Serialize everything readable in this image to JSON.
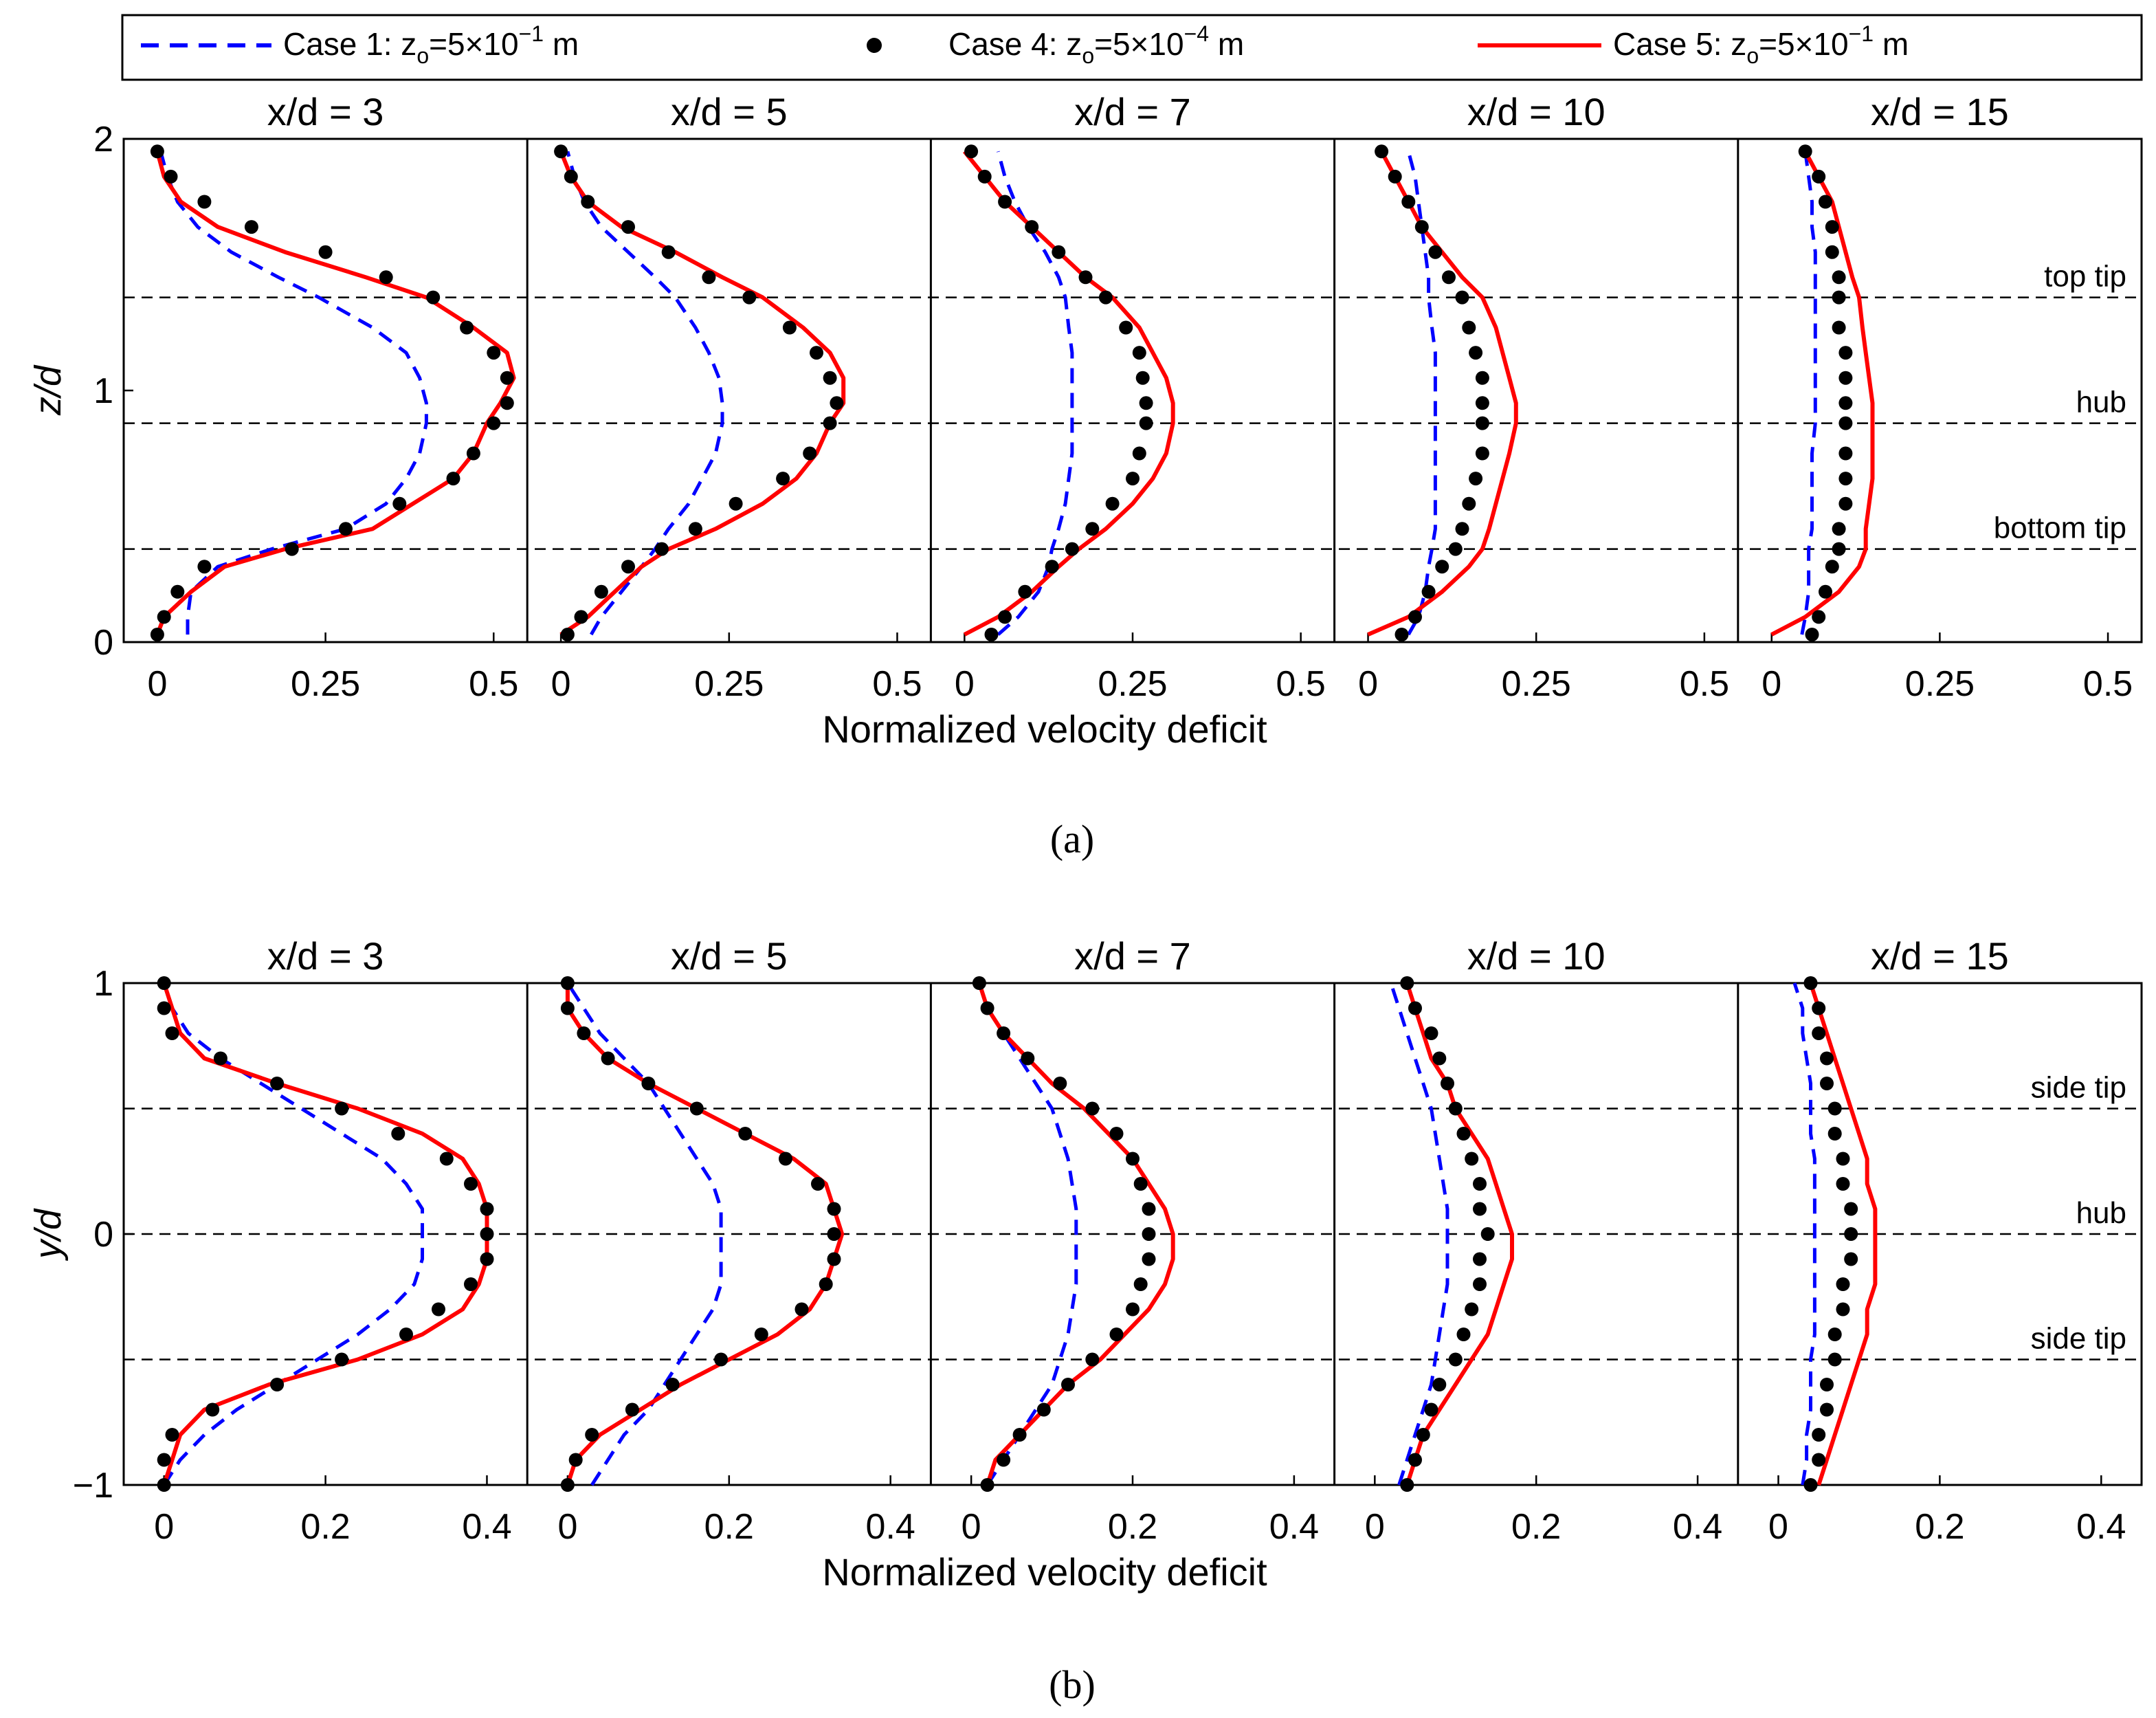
{
  "legend": {
    "entries": [
      {
        "id": "case1",
        "prefix": "Case 1: z",
        "sub": "o",
        "mid": "=5×10",
        "sup": "−1",
        "suffix": " m",
        "style": "dashed",
        "color": "#0000ff"
      },
      {
        "id": "case4",
        "prefix": "Case 4: z",
        "sub": "o",
        "mid": "=5×10",
        "sup": "−4",
        "suffix": " m",
        "style": "dots",
        "color": "#000000"
      },
      {
        "id": "case5",
        "prefix": "Case 5: z",
        "sub": "o",
        "mid": "=5×10",
        "sup": "−1",
        "suffix": " m",
        "style": "solid",
        "color": "#ff0000"
      }
    ]
  },
  "chart_data": [
    {
      "id": "a",
      "type": "line",
      "caption": "(a)",
      "xlabel": "Normalized velocity deficit",
      "ylabel": "z/d",
      "xlim": [
        -0.05,
        0.55
      ],
      "ylim": [
        0,
        2
      ],
      "xticks": [
        0,
        0.25,
        0.5
      ],
      "xtick_labels": [
        "0",
        "0.25",
        "0.5"
      ],
      "yticks": [
        0,
        1,
        2
      ],
      "ytick_labels": [
        "0",
        "1",
        "2"
      ],
      "reference_lines": [
        {
          "y": 1.37,
          "label": "top tip"
        },
        {
          "y": 0.87,
          "label": "hub"
        },
        {
          "y": 0.37,
          "label": "bottom tip"
        }
      ],
      "panels": [
        {
          "title": "x/d = 3",
          "y": [
            0.03,
            0.1,
            0.2,
            0.3,
            0.37,
            0.45,
            0.55,
            0.65,
            0.75,
            0.87,
            0.95,
            1.05,
            1.15,
            1.25,
            1.37,
            1.45,
            1.55,
            1.65,
            1.75,
            1.85,
            1.95
          ],
          "case1": [
            0.045,
            0.045,
            0.05,
            0.09,
            0.17,
            0.28,
            0.34,
            0.37,
            0.39,
            0.4,
            0.4,
            0.39,
            0.37,
            0.32,
            0.24,
            0.18,
            0.11,
            0.06,
            0.03,
            0.015,
            0.005
          ],
          "case4": [
            0.0,
            0.01,
            0.03,
            0.07,
            0.2,
            0.28,
            0.36,
            0.44,
            0.47,
            0.5,
            0.52,
            0.52,
            0.5,
            0.46,
            0.41,
            0.34,
            0.25,
            0.14,
            0.07,
            0.02,
            0.0
          ],
          "case5": [
            0.0,
            0.01,
            0.05,
            0.1,
            0.19,
            0.32,
            0.38,
            0.44,
            0.47,
            0.49,
            0.51,
            0.53,
            0.52,
            0.47,
            0.4,
            0.31,
            0.19,
            0.09,
            0.035,
            0.01,
            0.0
          ]
        },
        {
          "title": "x/d = 5",
          "y": [
            0.03,
            0.1,
            0.2,
            0.3,
            0.37,
            0.45,
            0.55,
            0.65,
            0.75,
            0.87,
            0.95,
            1.05,
            1.15,
            1.25,
            1.37,
            1.45,
            1.55,
            1.65,
            1.75,
            1.85,
            1.95
          ],
          "case1": [
            0.045,
            0.06,
            0.09,
            0.12,
            0.14,
            0.16,
            0.19,
            0.21,
            0.23,
            0.24,
            0.24,
            0.235,
            0.22,
            0.2,
            0.17,
            0.14,
            0.1,
            0.06,
            0.035,
            0.02,
            0.01
          ],
          "case4": [
            0.01,
            0.03,
            0.06,
            0.1,
            0.15,
            0.2,
            0.26,
            0.33,
            0.37,
            0.4,
            0.41,
            0.4,
            0.38,
            0.34,
            0.28,
            0.22,
            0.16,
            0.1,
            0.04,
            0.015,
            0.0
          ],
          "case5": [
            0.0,
            0.04,
            0.08,
            0.12,
            0.16,
            0.23,
            0.3,
            0.35,
            0.38,
            0.4,
            0.42,
            0.42,
            0.4,
            0.36,
            0.3,
            0.24,
            0.17,
            0.09,
            0.04,
            0.015,
            0.0
          ]
        },
        {
          "title": "x/d = 7",
          "y": [
            0.03,
            0.1,
            0.2,
            0.3,
            0.37,
            0.45,
            0.55,
            0.65,
            0.75,
            0.87,
            0.95,
            1.05,
            1.15,
            1.25,
            1.37,
            1.45,
            1.55,
            1.65,
            1.75,
            1.85,
            1.95
          ],
          "case1": [
            0.05,
            0.08,
            0.11,
            0.125,
            0.13,
            0.14,
            0.15,
            0.155,
            0.16,
            0.16,
            0.16,
            0.16,
            0.16,
            0.155,
            0.15,
            0.14,
            0.12,
            0.095,
            0.075,
            0.06,
            0.05
          ],
          "case4": [
            0.04,
            0.06,
            0.09,
            0.13,
            0.16,
            0.19,
            0.22,
            0.25,
            0.26,
            0.27,
            0.27,
            0.265,
            0.26,
            0.24,
            0.21,
            0.18,
            0.14,
            0.1,
            0.06,
            0.03,
            0.01
          ],
          "case5": [
            0.0,
            0.05,
            0.1,
            0.14,
            0.17,
            0.21,
            0.25,
            0.28,
            0.3,
            0.31,
            0.31,
            0.3,
            0.28,
            0.26,
            0.22,
            0.18,
            0.14,
            0.1,
            0.06,
            0.03,
            0.0
          ]
        },
        {
          "title": "x/d = 10",
          "y": [
            0.03,
            0.1,
            0.2,
            0.3,
            0.37,
            0.45,
            0.55,
            0.65,
            0.75,
            0.87,
            0.95,
            1.05,
            1.15,
            1.25,
            1.37,
            1.45,
            1.55,
            1.65,
            1.75,
            1.85,
            1.95
          ],
          "case1": [
            0.06,
            0.075,
            0.085,
            0.09,
            0.095,
            0.1,
            0.1,
            0.1,
            0.1,
            0.1,
            0.1,
            0.1,
            0.1,
            0.095,
            0.09,
            0.09,
            0.085,
            0.08,
            0.075,
            0.07,
            0.06
          ],
          "case4": [
            0.05,
            0.07,
            0.09,
            0.11,
            0.13,
            0.14,
            0.15,
            0.16,
            0.17,
            0.17,
            0.17,
            0.17,
            0.16,
            0.15,
            0.14,
            0.12,
            0.1,
            0.08,
            0.06,
            0.04,
            0.02
          ],
          "case5": [
            0.0,
            0.06,
            0.11,
            0.15,
            0.17,
            0.18,
            0.19,
            0.2,
            0.21,
            0.22,
            0.22,
            0.21,
            0.2,
            0.19,
            0.17,
            0.14,
            0.11,
            0.08,
            0.06,
            0.04,
            0.02
          ]
        },
        {
          "title": "x/d = 15",
          "y": [
            0.03,
            0.1,
            0.2,
            0.3,
            0.37,
            0.45,
            0.55,
            0.65,
            0.75,
            0.87,
            0.95,
            1.05,
            1.15,
            1.25,
            1.37,
            1.45,
            1.55,
            1.65,
            1.75,
            1.85,
            1.95
          ],
          "case1": [
            0.045,
            0.05,
            0.055,
            0.055,
            0.055,
            0.06,
            0.06,
            0.06,
            0.06,
            0.065,
            0.065,
            0.065,
            0.065,
            0.065,
            0.065,
            0.065,
            0.065,
            0.06,
            0.06,
            0.055,
            0.05
          ],
          "case4": [
            0.06,
            0.07,
            0.08,
            0.09,
            0.1,
            0.1,
            0.11,
            0.11,
            0.11,
            0.11,
            0.11,
            0.11,
            0.11,
            0.1,
            0.1,
            0.1,
            0.09,
            0.09,
            0.08,
            0.07,
            0.05
          ],
          "case5": [
            0.0,
            0.05,
            0.1,
            0.13,
            0.14,
            0.14,
            0.145,
            0.15,
            0.15,
            0.15,
            0.15,
            0.145,
            0.14,
            0.135,
            0.13,
            0.12,
            0.11,
            0.1,
            0.09,
            0.07,
            0.05
          ]
        }
      ]
    },
    {
      "id": "b",
      "type": "line",
      "caption": "(b)",
      "xlabel": "Normalized velocity deficit",
      "ylabel": "y/d",
      "xlim": [
        -0.05,
        0.45
      ],
      "ylim": [
        -1,
        1
      ],
      "xticks": [
        0,
        0.2,
        0.4
      ],
      "xtick_labels": [
        "0",
        "0.2",
        "0.4"
      ],
      "yticks": [
        -1,
        0,
        1
      ],
      "ytick_labels": [
        "−1",
        "0",
        "1"
      ],
      "reference_lines": [
        {
          "y": 0.5,
          "label": "side tip"
        },
        {
          "y": 0,
          "label": "hub"
        },
        {
          "y": -0.5,
          "label": "side tip"
        }
      ],
      "panels": [
        {
          "title": "x/d = 3",
          "y": [
            -1.0,
            -0.9,
            -0.8,
            -0.7,
            -0.6,
            -0.5,
            -0.4,
            -0.3,
            -0.2,
            -0.1,
            0.0,
            0.1,
            0.2,
            0.3,
            0.4,
            0.5,
            0.6,
            0.7,
            0.8,
            0.9,
            1.0
          ],
          "case1": [
            0.0,
            0.02,
            0.05,
            0.09,
            0.14,
            0.19,
            0.24,
            0.28,
            0.31,
            0.32,
            0.32,
            0.32,
            0.3,
            0.27,
            0.22,
            0.17,
            0.12,
            0.07,
            0.03,
            0.01,
            0.0
          ],
          "case4": [
            0.0,
            0.0,
            0.01,
            0.06,
            0.14,
            0.22,
            0.3,
            0.34,
            0.38,
            0.4,
            0.4,
            0.4,
            0.38,
            0.35,
            0.29,
            0.22,
            0.14,
            0.07,
            0.01,
            0.0,
            0.0
          ],
          "case5": [
            0.0,
            0.01,
            0.02,
            0.05,
            0.13,
            0.24,
            0.32,
            0.37,
            0.39,
            0.4,
            0.4,
            0.4,
            0.39,
            0.37,
            0.32,
            0.24,
            0.14,
            0.05,
            0.02,
            0.01,
            0.0
          ]
        },
        {
          "title": "x/d = 5",
          "y": [
            -1.0,
            -0.9,
            -0.8,
            -0.7,
            -0.6,
            -0.5,
            -0.4,
            -0.3,
            -0.2,
            -0.1,
            0.0,
            0.1,
            0.2,
            0.3,
            0.4,
            0.5,
            0.6,
            0.7,
            0.8,
            0.9,
            1.0
          ],
          "case1": [
            0.03,
            0.05,
            0.07,
            0.1,
            0.12,
            0.14,
            0.16,
            0.18,
            0.19,
            0.19,
            0.19,
            0.19,
            0.18,
            0.16,
            0.14,
            0.12,
            0.1,
            0.07,
            0.04,
            0.02,
            0.0
          ],
          "case4": [
            0.0,
            0.01,
            0.03,
            0.08,
            0.13,
            0.19,
            0.24,
            0.29,
            0.32,
            0.33,
            0.33,
            0.33,
            0.31,
            0.27,
            0.22,
            0.16,
            0.1,
            0.05,
            0.02,
            0.0,
            0.0
          ],
          "case5": [
            0.0,
            0.01,
            0.04,
            0.09,
            0.14,
            0.2,
            0.26,
            0.3,
            0.32,
            0.33,
            0.34,
            0.33,
            0.32,
            0.28,
            0.22,
            0.16,
            0.1,
            0.05,
            0.02,
            0.0,
            0.0
          ]
        },
        {
          "title": "x/d = 7",
          "y": [
            -1.0,
            -0.9,
            -0.8,
            -0.7,
            -0.6,
            -0.5,
            -0.4,
            -0.3,
            -0.2,
            -0.1,
            0.0,
            0.1,
            0.2,
            0.3,
            0.4,
            0.5,
            0.6,
            0.7,
            0.8,
            0.9,
            1.0
          ],
          "case1": [
            0.02,
            0.04,
            0.06,
            0.08,
            0.1,
            0.11,
            0.12,
            0.125,
            0.13,
            0.13,
            0.13,
            0.13,
            0.125,
            0.12,
            0.11,
            0.1,
            0.08,
            0.06,
            0.04,
            0.02,
            0.01
          ],
          "case4": [
            0.02,
            0.04,
            0.06,
            0.09,
            0.12,
            0.15,
            0.18,
            0.2,
            0.21,
            0.22,
            0.22,
            0.22,
            0.21,
            0.2,
            0.18,
            0.15,
            0.11,
            0.07,
            0.04,
            0.02,
            0.01
          ],
          "case5": [
            0.02,
            0.03,
            0.06,
            0.09,
            0.12,
            0.16,
            0.19,
            0.22,
            0.24,
            0.25,
            0.25,
            0.24,
            0.22,
            0.2,
            0.17,
            0.14,
            0.1,
            0.07,
            0.04,
            0.02,
            0.01
          ]
        },
        {
          "title": "x/d = 10",
          "y": [
            -1.0,
            -0.9,
            -0.8,
            -0.7,
            -0.6,
            -0.5,
            -0.4,
            -0.3,
            -0.2,
            -0.1,
            0.0,
            0.1,
            0.2,
            0.3,
            0.4,
            0.5,
            0.6,
            0.7,
            0.8,
            0.9,
            1.0
          ],
          "case1": [
            0.03,
            0.04,
            0.05,
            0.06,
            0.07,
            0.075,
            0.08,
            0.085,
            0.09,
            0.09,
            0.09,
            0.09,
            0.085,
            0.08,
            0.075,
            0.07,
            0.06,
            0.05,
            0.04,
            0.03,
            0.02
          ],
          "case4": [
            0.04,
            0.05,
            0.06,
            0.07,
            0.08,
            0.1,
            0.11,
            0.12,
            0.13,
            0.13,
            0.14,
            0.13,
            0.13,
            0.12,
            0.11,
            0.1,
            0.09,
            0.08,
            0.07,
            0.05,
            0.04
          ],
          "case5": [
            0.04,
            0.05,
            0.06,
            0.08,
            0.1,
            0.12,
            0.14,
            0.15,
            0.16,
            0.17,
            0.17,
            0.16,
            0.15,
            0.14,
            0.12,
            0.1,
            0.09,
            0.07,
            0.06,
            0.05,
            0.04
          ]
        },
        {
          "title": "x/d = 15",
          "y": [
            -1.0,
            -0.9,
            -0.8,
            -0.7,
            -0.6,
            -0.5,
            -0.4,
            -0.3,
            -0.2,
            -0.1,
            0.0,
            0.1,
            0.2,
            0.3,
            0.4,
            0.5,
            0.6,
            0.7,
            0.8,
            0.9,
            1.0
          ],
          "case1": [
            0.03,
            0.035,
            0.035,
            0.04,
            0.04,
            0.04,
            0.045,
            0.045,
            0.045,
            0.045,
            0.045,
            0.045,
            0.045,
            0.045,
            0.04,
            0.04,
            0.04,
            0.035,
            0.03,
            0.03,
            0.02
          ],
          "case4": [
            0.04,
            0.05,
            0.05,
            0.06,
            0.06,
            0.07,
            0.07,
            0.08,
            0.08,
            0.09,
            0.09,
            0.09,
            0.08,
            0.08,
            0.07,
            0.07,
            0.06,
            0.06,
            0.05,
            0.05,
            0.04
          ],
          "case5": [
            0.05,
            0.06,
            0.07,
            0.08,
            0.09,
            0.1,
            0.11,
            0.11,
            0.12,
            0.12,
            0.12,
            0.12,
            0.11,
            0.11,
            0.1,
            0.09,
            0.08,
            0.07,
            0.06,
            0.05,
            0.04
          ]
        }
      ]
    }
  ]
}
